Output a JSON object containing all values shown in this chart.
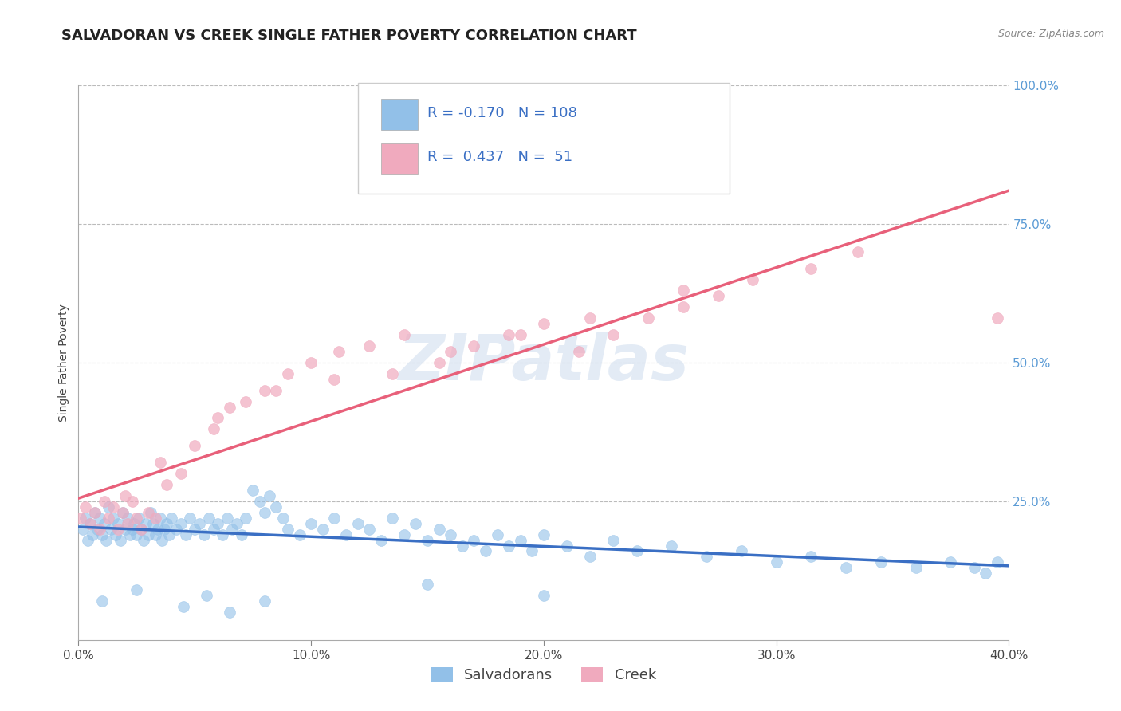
{
  "title": "SALVADORAN VS CREEK SINGLE FATHER POVERTY CORRELATION CHART",
  "source_text": "Source: ZipAtlas.com",
  "ylabel": "Single Father Poverty",
  "xlim": [
    0.0,
    0.4
  ],
  "ylim": [
    0.0,
    1.0
  ],
  "xtick_labels": [
    "0.0%",
    "10.0%",
    "20.0%",
    "30.0%",
    "40.0%"
  ],
  "xtick_vals": [
    0.0,
    0.1,
    0.2,
    0.3,
    0.4
  ],
  "ytick_labels": [
    "100.0%",
    "75.0%",
    "50.0%",
    "25.0%"
  ],
  "ytick_vals": [
    1.0,
    0.75,
    0.5,
    0.25
  ],
  "salvadoran_R": -0.17,
  "salvadoran_N": 108,
  "creek_R": 0.437,
  "creek_N": 51,
  "blue_color": "#92C0E8",
  "pink_color": "#F0AABE",
  "blue_line_color": "#3A6FC4",
  "pink_line_color": "#E8607A",
  "legend_blue_label": "Salvadorans",
  "legend_pink_label": "Creek",
  "watermark": "ZIPatlas",
  "background_color": "#FFFFFF",
  "grid_color": "#BBBBBB",
  "title_fontsize": 13,
  "axis_label_fontsize": 10,
  "tick_fontsize": 11,
  "legend_fontsize": 13,
  "right_tick_color": "#5B9BD5",
  "salvadoran_x": [
    0.002,
    0.003,
    0.004,
    0.005,
    0.006,
    0.007,
    0.008,
    0.009,
    0.01,
    0.011,
    0.012,
    0.013,
    0.014,
    0.015,
    0.016,
    0.017,
    0.018,
    0.019,
    0.02,
    0.021,
    0.022,
    0.023,
    0.024,
    0.025,
    0.026,
    0.027,
    0.028,
    0.029,
    0.03,
    0.031,
    0.032,
    0.033,
    0.034,
    0.035,
    0.036,
    0.037,
    0.038,
    0.039,
    0.04,
    0.042,
    0.044,
    0.046,
    0.048,
    0.05,
    0.052,
    0.054,
    0.056,
    0.058,
    0.06,
    0.062,
    0.064,
    0.066,
    0.068,
    0.07,
    0.072,
    0.075,
    0.078,
    0.08,
    0.082,
    0.085,
    0.088,
    0.09,
    0.095,
    0.1,
    0.105,
    0.11,
    0.115,
    0.12,
    0.125,
    0.13,
    0.135,
    0.14,
    0.145,
    0.15,
    0.155,
    0.16,
    0.165,
    0.17,
    0.175,
    0.18,
    0.185,
    0.19,
    0.195,
    0.2,
    0.21,
    0.22,
    0.23,
    0.24,
    0.255,
    0.27,
    0.285,
    0.3,
    0.315,
    0.33,
    0.345,
    0.36,
    0.375,
    0.385,
    0.39,
    0.395,
    0.15,
    0.2,
    0.01,
    0.025,
    0.045,
    0.055,
    0.065,
    0.08
  ],
  "salvadoran_y": [
    0.2,
    0.22,
    0.18,
    0.21,
    0.19,
    0.23,
    0.2,
    0.22,
    0.19,
    0.21,
    0.18,
    0.24,
    0.2,
    0.22,
    0.19,
    0.21,
    0.18,
    0.23,
    0.2,
    0.22,
    0.19,
    0.2,
    0.21,
    0.19,
    0.22,
    0.2,
    0.18,
    0.21,
    0.19,
    0.23,
    0.21,
    0.19,
    0.2,
    0.22,
    0.18,
    0.2,
    0.21,
    0.19,
    0.22,
    0.2,
    0.21,
    0.19,
    0.22,
    0.2,
    0.21,
    0.19,
    0.22,
    0.2,
    0.21,
    0.19,
    0.22,
    0.2,
    0.21,
    0.19,
    0.22,
    0.27,
    0.25,
    0.23,
    0.26,
    0.24,
    0.22,
    0.2,
    0.19,
    0.21,
    0.2,
    0.22,
    0.19,
    0.21,
    0.2,
    0.18,
    0.22,
    0.19,
    0.21,
    0.18,
    0.2,
    0.19,
    0.17,
    0.18,
    0.16,
    0.19,
    0.17,
    0.18,
    0.16,
    0.19,
    0.17,
    0.15,
    0.18,
    0.16,
    0.17,
    0.15,
    0.16,
    0.14,
    0.15,
    0.13,
    0.14,
    0.13,
    0.14,
    0.13,
    0.12,
    0.14,
    0.1,
    0.08,
    0.07,
    0.09,
    0.06,
    0.08,
    0.05,
    0.07
  ],
  "creek_x": [
    0.001,
    0.003,
    0.005,
    0.007,
    0.009,
    0.011,
    0.013,
    0.015,
    0.017,
    0.019,
    0.021,
    0.023,
    0.025,
    0.027,
    0.03,
    0.033,
    0.038,
    0.044,
    0.05,
    0.058,
    0.065,
    0.072,
    0.08,
    0.09,
    0.1,
    0.112,
    0.125,
    0.14,
    0.155,
    0.17,
    0.185,
    0.2,
    0.215,
    0.23,
    0.245,
    0.26,
    0.275,
    0.29,
    0.315,
    0.335,
    0.02,
    0.035,
    0.06,
    0.085,
    0.11,
    0.135,
    0.16,
    0.19,
    0.22,
    0.26,
    0.395
  ],
  "creek_y": [
    0.22,
    0.24,
    0.21,
    0.23,
    0.2,
    0.25,
    0.22,
    0.24,
    0.2,
    0.23,
    0.21,
    0.25,
    0.22,
    0.2,
    0.23,
    0.22,
    0.28,
    0.3,
    0.35,
    0.38,
    0.42,
    0.43,
    0.45,
    0.48,
    0.5,
    0.52,
    0.53,
    0.55,
    0.5,
    0.53,
    0.55,
    0.57,
    0.52,
    0.55,
    0.58,
    0.6,
    0.62,
    0.65,
    0.67,
    0.7,
    0.26,
    0.32,
    0.4,
    0.45,
    0.47,
    0.48,
    0.52,
    0.55,
    0.58,
    0.63,
    0.58
  ]
}
